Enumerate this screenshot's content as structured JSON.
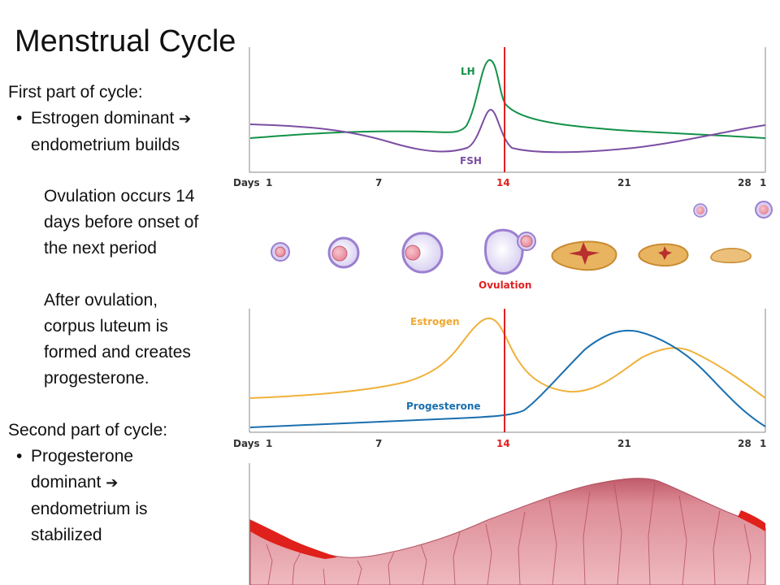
{
  "title": "Menstrual Cycle",
  "left_text": {
    "first_heading": "First part of cycle:",
    "first_bullet_a": "Estrogen dominant",
    "first_bullet_b": "endometrium builds",
    "ovulation_para": [
      "Ovulation occurs 14",
      "days before onset of",
      "the next period"
    ],
    "luteum_para": [
      "After ovulation,",
      "corpus luteum is",
      "formed and creates",
      "progesterone."
    ],
    "second_heading": "Second part of cycle:",
    "second_bullet": [
      "Progesterone",
      "dominant",
      "endometrium is",
      "stabilized"
    ],
    "arrow_glyph": "➔",
    "bullet_glyph": "•"
  },
  "chart_data": [
    {
      "type": "line",
      "x_axis_title": "Days",
      "x_ticks": [
        "1",
        "7",
        "14",
        "21",
        "28",
        "1"
      ],
      "marker_day": 14,
      "series": [
        {
          "name": "LH",
          "color": "#129148"
        },
        {
          "name": "FSH",
          "color": "#7b4ea3"
        }
      ]
    },
    {
      "type": "line",
      "x_axis_title": "Days",
      "x_ticks": [
        "1",
        "7",
        "14",
        "21",
        "28",
        "1"
      ],
      "marker_day": 14,
      "series": [
        {
          "name": "Estrogen",
          "color": "#f0b13a"
        },
        {
          "name": "Progesterone",
          "color": "#1a6fb0"
        }
      ]
    }
  ],
  "ovary_label": "Ovulation",
  "colors": {
    "marker": "#e02020",
    "axis": "#888888",
    "follicle": "#9b7fd0",
    "corpus_luteum": "#e8b460",
    "endometrium": "#d98791"
  }
}
